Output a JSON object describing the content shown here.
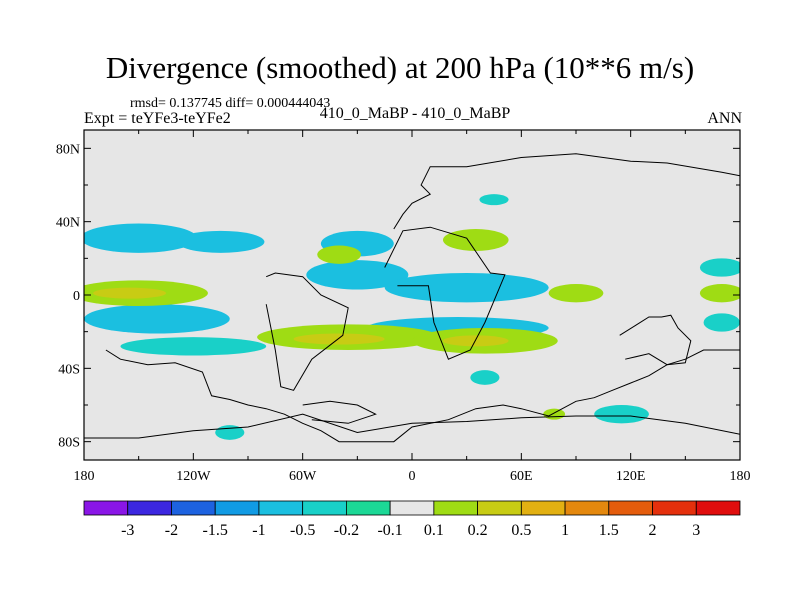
{
  "chart_data": {
    "type": "heatmap",
    "title": "Divergence (smoothed) at 200 hPa (10**6 m/s)",
    "stats": "rmsd= 0.137745 diff= 0.000444043",
    "experiment": "Expt = teYFe3-teYFe2",
    "case_label": "410_0_MaBP - 410_0_MaBP",
    "season": "ANN",
    "x_ticks": [
      {
        "value": -180,
        "label": "180"
      },
      {
        "value": -120,
        "label": "120W"
      },
      {
        "value": -60,
        "label": "60W"
      },
      {
        "value": 0,
        "label": "0"
      },
      {
        "value": 60,
        "label": "60E"
      },
      {
        "value": 120,
        "label": "120E"
      },
      {
        "value": 180,
        "label": "180"
      }
    ],
    "y_ticks": [
      {
        "value": 80,
        "label": "80N"
      },
      {
        "value": 40,
        "label": "40N"
      },
      {
        "value": 0,
        "label": "0"
      },
      {
        "value": -40,
        "label": "40S"
      },
      {
        "value": -80,
        "label": "80S"
      }
    ],
    "xlim": [
      -180,
      180
    ],
    "ylim": [
      -90,
      90
    ],
    "levels": [
      "-3",
      "-2",
      "-1.5",
      "-1",
      "-0.5",
      "-0.2",
      "-0.1",
      "0.1",
      "0.2",
      "0.5",
      "1",
      "1.5",
      "2",
      "3"
    ],
    "colors": [
      "#8a16e6",
      "#3c27e0",
      "#1d62e0",
      "#119be4",
      "#1bbfe0",
      "#19d0c8",
      "#1cd896",
      "#e6e6e6",
      "#9fdc14",
      "#c8cc14",
      "#e2b012",
      "#e4880e",
      "#e45c0c",
      "#e4300c",
      "#e00e0e"
    ],
    "neutral_color": "#e6e6e6",
    "regions": [
      {
        "level": "neg",
        "color": "#1bbfe0",
        "lon": -150,
        "lat": 31,
        "rlon": 32,
        "rlat": 8
      },
      {
        "level": "neg",
        "color": "#1bbfe0",
        "lon": -105,
        "lat": 29,
        "rlon": 24,
        "rlat": 6
      },
      {
        "level": "neg",
        "color": "#1bbfe0",
        "lon": -30,
        "lat": 28,
        "rlon": 20,
        "rlat": 7
      },
      {
        "level": "neg",
        "color": "#1bbfe0",
        "lon": -30,
        "lat": 11,
        "rlon": 28,
        "rlat": 8
      },
      {
        "level": "neg",
        "color": "#1bbfe0",
        "lon": 30,
        "lat": 4,
        "rlon": 45,
        "rlat": 8
      },
      {
        "level": "neg",
        "color": "#1bbfe0",
        "lon": -140,
        "lat": -13,
        "rlon": 40,
        "rlat": 8
      },
      {
        "level": "neg",
        "color": "#1bbfe0",
        "lon": 25,
        "lat": -18,
        "rlon": 50,
        "rlat": 6
      },
      {
        "level": "neg",
        "color": "#19d0c8",
        "lon": -120,
        "lat": -28,
        "rlon": 40,
        "rlat": 5
      },
      {
        "level": "neg",
        "color": "#19d0c8",
        "lon": 45,
        "lat": 52,
        "rlon": 8,
        "rlat": 3
      },
      {
        "level": "neg",
        "color": "#19d0c8",
        "lon": 170,
        "lat": 15,
        "rlon": 12,
        "rlat": 5
      },
      {
        "level": "neg",
        "color": "#19d0c8",
        "lon": 170,
        "lat": -15,
        "rlon": 10,
        "rlat": 5
      },
      {
        "level": "neg",
        "color": "#19d0c8",
        "lon": -100,
        "lat": -75,
        "rlon": 8,
        "rlat": 4
      },
      {
        "level": "neg",
        "color": "#19d0c8",
        "lon": 115,
        "lat": -65,
        "rlon": 15,
        "rlat": 5
      },
      {
        "level": "neg",
        "color": "#19d0c8",
        "lon": 40,
        "lat": -45,
        "rlon": 8,
        "rlat": 4
      },
      {
        "level": "pos",
        "color": "#9fdc14",
        "lon": -150,
        "lat": 1,
        "rlon": 38,
        "rlat": 7
      },
      {
        "level": "pos",
        "color": "#9fdc14",
        "lon": -40,
        "lat": 22,
        "rlon": 12,
        "rlat": 5
      },
      {
        "level": "pos",
        "color": "#9fdc14",
        "lon": 35,
        "lat": 30,
        "rlon": 18,
        "rlat": 6
      },
      {
        "level": "pos",
        "color": "#9fdc14",
        "lon": 90,
        "lat": 1,
        "rlon": 15,
        "rlat": 5
      },
      {
        "level": "pos",
        "color": "#9fdc14",
        "lon": -35,
        "lat": -23,
        "rlon": 50,
        "rlat": 7
      },
      {
        "level": "pos",
        "color": "#9fdc14",
        "lon": 40,
        "lat": -25,
        "rlon": 40,
        "rlat": 7
      },
      {
        "level": "pos",
        "color": "#9fdc14",
        "lon": 170,
        "lat": 1,
        "rlon": 12,
        "rlat": 5
      },
      {
        "level": "pos",
        "color": "#9fdc14",
        "lon": 78,
        "lat": -65,
        "rlon": 6,
        "rlat": 3
      },
      {
        "level": "pos",
        "color": "#c8cc14",
        "lon": -155,
        "lat": 1,
        "rlon": 20,
        "rlat": 3
      },
      {
        "level": "pos",
        "color": "#c8cc14",
        "lon": -40,
        "lat": -24,
        "rlon": 25,
        "rlat": 3
      },
      {
        "level": "pos",
        "color": "#c8cc14",
        "lon": 35,
        "lat": -25,
        "rlon": 18,
        "rlat": 3
      }
    ],
    "continents": [
      {
        "name": "north-america",
        "points": [
          [
            -168,
            -30
          ],
          [
            -160,
            -35
          ],
          [
            -145,
            -38
          ],
          [
            -130,
            -37
          ],
          [
            -115,
            -42
          ],
          [
            -110,
            -55
          ],
          [
            -100,
            -57
          ],
          [
            -90,
            -60
          ],
          [
            -80,
            -62
          ],
          [
            -70,
            -65
          ],
          [
            -60,
            -70
          ],
          [
            -50,
            -74
          ],
          [
            -40,
            -80
          ],
          [
            -10,
            -80
          ],
          [
            0,
            -72
          ],
          [
            20,
            -68
          ],
          [
            35,
            -62
          ],
          [
            50,
            -60
          ],
          [
            60,
            -62
          ],
          [
            75,
            -66
          ],
          [
            90,
            -58
          ],
          [
            100,
            -56
          ],
          [
            110,
            -52
          ],
          [
            120,
            -48
          ],
          [
            130,
            -44
          ],
          [
            140,
            -38
          ],
          [
            150,
            -35
          ],
          [
            160,
            -30
          ],
          [
            180,
            -30
          ]
        ]
      },
      {
        "name": "greenland",
        "points": [
          [
            -60,
            -60
          ],
          [
            -45,
            -58
          ],
          [
            -30,
            -60
          ],
          [
            -20,
            -65
          ],
          [
            -35,
            -70
          ],
          [
            -55,
            -68
          ]
        ]
      },
      {
        "name": "south-america",
        "points": [
          [
            -80,
            10
          ],
          [
            -75,
            12
          ],
          [
            -60,
            10
          ],
          [
            -50,
            0
          ],
          [
            -35,
            -7
          ],
          [
            -38,
            -22
          ],
          [
            -55,
            -35
          ],
          [
            -65,
            -52
          ],
          [
            -72,
            -50
          ],
          [
            -75,
            -30
          ],
          [
            -80,
            -5
          ]
        ]
      },
      {
        "name": "africa",
        "points": [
          [
            -15,
            15
          ],
          [
            -5,
            35
          ],
          [
            10,
            37
          ],
          [
            30,
            31
          ],
          [
            43,
            12
          ],
          [
            51,
            11
          ],
          [
            40,
            -15
          ],
          [
            32,
            -30
          ],
          [
            20,
            -35
          ],
          [
            12,
            -15
          ],
          [
            9,
            5
          ],
          [
            -8,
            5
          ]
        ]
      },
      {
        "name": "europe-asia",
        "points": [
          [
            -10,
            36
          ],
          [
            -5,
            44
          ],
          [
            0,
            50
          ],
          [
            10,
            55
          ],
          [
            5,
            60
          ],
          [
            10,
            70
          ],
          [
            30,
            70
          ],
          [
            60,
            75
          ],
          [
            90,
            77
          ],
          [
            120,
            73
          ],
          [
            140,
            72
          ],
          [
            170,
            67
          ],
          [
            180,
            65
          ]
        ]
      },
      {
        "name": "australia",
        "points": [
          [
            114,
            -22
          ],
          [
            122,
            -17
          ],
          [
            130,
            -12
          ],
          [
            137,
            -12
          ],
          [
            142,
            -11
          ],
          [
            146,
            -18
          ],
          [
            153,
            -25
          ],
          [
            150,
            -37
          ],
          [
            140,
            -38
          ],
          [
            130,
            -32
          ],
          [
            117,
            -35
          ]
        ]
      },
      {
        "name": "antarctica",
        "points": [
          [
            -180,
            -78
          ],
          [
            -150,
            -78
          ],
          [
            -120,
            -74
          ],
          [
            -90,
            -72
          ],
          [
            -60,
            -65
          ],
          [
            -30,
            -75
          ],
          [
            0,
            -70
          ],
          [
            30,
            -69
          ],
          [
            60,
            -67
          ],
          [
            90,
            -66
          ],
          [
            120,
            -66
          ],
          [
            150,
            -70
          ],
          [
            180,
            -76
          ]
        ]
      }
    ]
  }
}
